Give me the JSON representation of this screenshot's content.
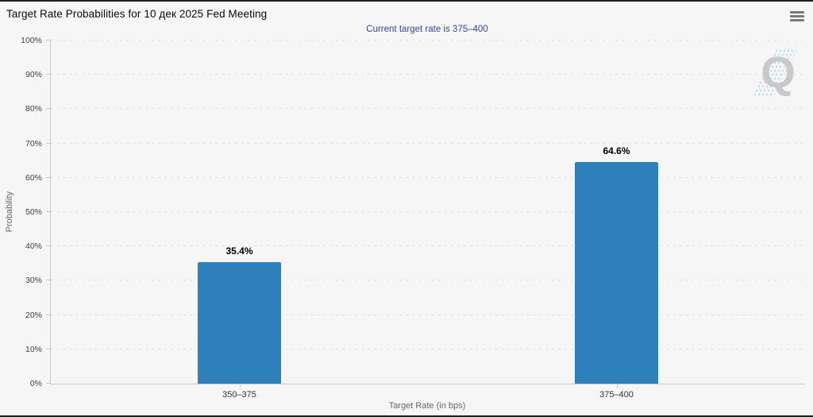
{
  "chart_data": {
    "type": "bar",
    "title": "Target Rate Probabilities for 10 дек 2025 Fed Meeting",
    "subtitle": "Current target rate is 375–400",
    "categories": [
      "350–375",
      "375–400"
    ],
    "values": [
      35.4,
      64.6
    ],
    "value_labels": [
      "35.4%",
      "64.6%"
    ],
    "xlabel": "Target Rate (in bps)",
    "ylabel": "Probability",
    "ylim": [
      0,
      100
    ],
    "ytick_step": 10,
    "ytick_suffix": "%",
    "grid": "dotted-horizontal",
    "legend": "none",
    "bar_color": "#2d80ba"
  },
  "icons": {
    "menu": "hamburger-menu-icon",
    "watermark": "q-logo-watermark"
  },
  "colors": {
    "background": "#f6f6f6",
    "frame_border": "#1f1f1f",
    "bar": "#2d80ba",
    "subtitle_text": "#2c4a96",
    "axis_line": "#c9c9c9",
    "grid_dot": "#d9d9d9",
    "tick_label": "#3f3f3f",
    "axis_title": "#666666",
    "title_text": "#0a0a0a",
    "watermark_q": "#c9c9c9",
    "watermark_stripes": "#b8dff0"
  }
}
